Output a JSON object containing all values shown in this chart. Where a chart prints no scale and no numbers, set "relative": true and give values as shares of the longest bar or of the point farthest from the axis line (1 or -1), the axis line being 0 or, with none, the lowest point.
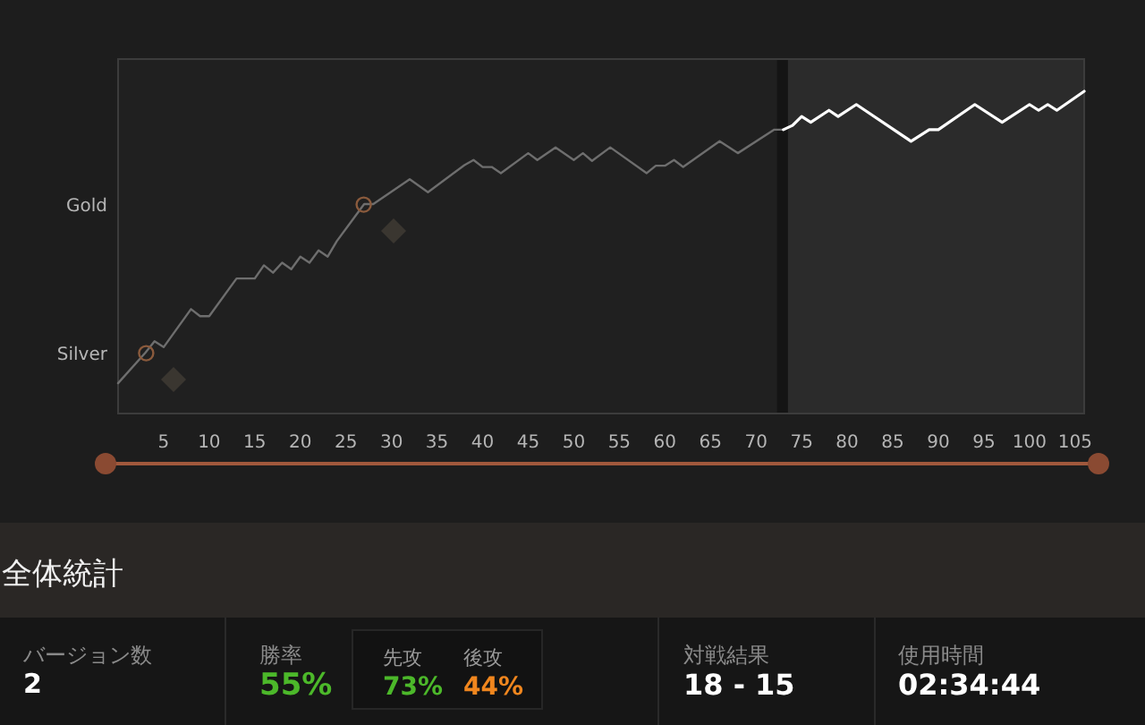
{
  "chart_data": [
    {
      "type": "line",
      "relative": true,
      "xlim": [
        0,
        106
      ],
      "xticks": [
        5,
        10,
        15,
        20,
        25,
        30,
        35,
        40,
        45,
        50,
        55,
        60,
        65,
        70,
        75,
        80,
        85,
        90,
        95,
        100,
        105
      ],
      "annotations": [
        "Silver",
        "Gold"
      ],
      "series": [
        {
          "color": "#6e6e6e",
          "x": [
            0,
            3,
            4,
            5,
            8,
            9,
            10,
            13,
            15,
            16,
            17,
            18,
            19,
            20,
            21,
            22,
            23,
            24,
            27,
            28,
            32,
            34,
            38,
            39,
            40,
            41,
            42,
            45,
            46,
            48,
            50,
            51,
            52,
            54,
            58,
            59,
            60,
            61,
            62,
            66,
            68,
            72,
            73
          ],
          "values": [
            0.094,
            0.189,
            0.224,
            0.206,
            0.324,
            0.302,
            0.302,
            0.419,
            0.419,
            0.46,
            0.437,
            0.468,
            0.448,
            0.487,
            0.468,
            0.506,
            0.487,
            0.535,
            0.65,
            0.65,
            0.727,
            0.687,
            0.771,
            0.787,
            0.765,
            0.765,
            0.746,
            0.808,
            0.787,
            0.826,
            0.787,
            0.808,
            0.784,
            0.826,
            0.746,
            0.769,
            0.769,
            0.787,
            0.765,
            0.845,
            0.808,
            0.881,
            0.881
          ]
        },
        {
          "color": "#ffffff",
          "x": [
            73,
            74,
            75,
            76,
            78,
            79,
            81,
            87,
            89,
            90,
            94,
            97,
            100,
            101,
            102,
            103,
            106
          ],
          "values": [
            0.881,
            0.894,
            0.922,
            0.904,
            0.941,
            0.922,
            0.959,
            0.845,
            0.881,
            0.881,
            0.959,
            0.904,
            0.959,
            0.941,
            0.959,
            0.941,
            1.0
          ]
        }
      ],
      "bands": [
        {
          "axis": "x",
          "from": 72.3,
          "to": 73.5,
          "color": "#141414"
        },
        {
          "axis": "x",
          "from": 73.5,
          "to": 106,
          "color": "#2b2b2b"
        }
      ],
      "marker": "none",
      "line_style": "solid"
    },
    {
      "type": "other",
      "title": "全体統計",
      "annotations": [
        "バージョン数",
        "2",
        "勝率",
        "55%",
        "先攻",
        "73%",
        "後攻",
        "44%",
        "対戦結果",
        "18 - 15",
        "使用時間",
        "02:34:44"
      ]
    }
  ]
}
